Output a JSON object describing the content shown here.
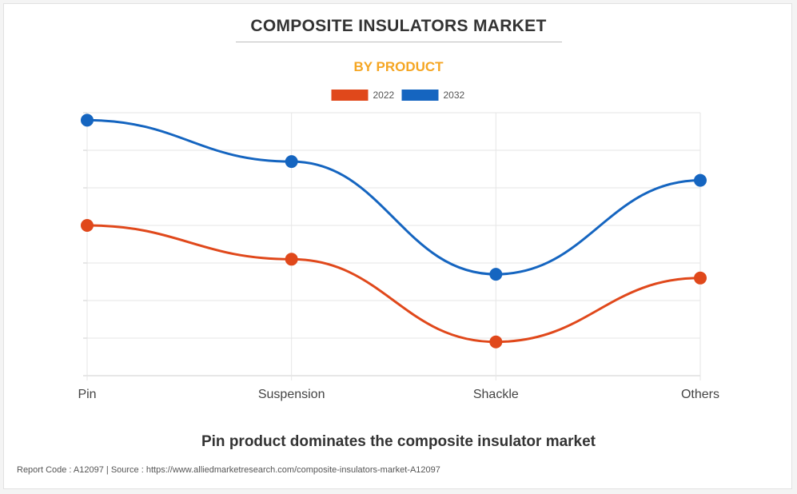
{
  "title": "COMPOSITE INSULATORS MARKET",
  "subtitle": "BY PRODUCT",
  "caption": "Pin product dominates the composite insulator market",
  "footer": "Report Code : A12097  |  Source : https://www.alliedmarketresearch.com/composite-insulators-market-A12097",
  "colors": {
    "subtitle": "#f5a623",
    "series_2022": "#e0481b",
    "series_2032": "#1565c0",
    "grid": "#e6e6e6"
  },
  "chart_data": {
    "type": "line",
    "title": "COMPOSITE INSULATORS MARKET",
    "subtitle": "BY PRODUCT",
    "categories": [
      "Pin",
      "Suspension",
      "Shackle",
      "Others"
    ],
    "ylim": [
      0,
      7
    ],
    "grid": true,
    "legend": "top-center",
    "xlabel": "",
    "ylabel": "",
    "series": [
      {
        "name": "2022",
        "color": "#e0481b",
        "values": [
          4.0,
          3.1,
          0.9,
          2.6
        ]
      },
      {
        "name": "2032",
        "color": "#1565c0",
        "values": [
          6.8,
          5.7,
          2.7,
          5.2
        ]
      }
    ]
  }
}
